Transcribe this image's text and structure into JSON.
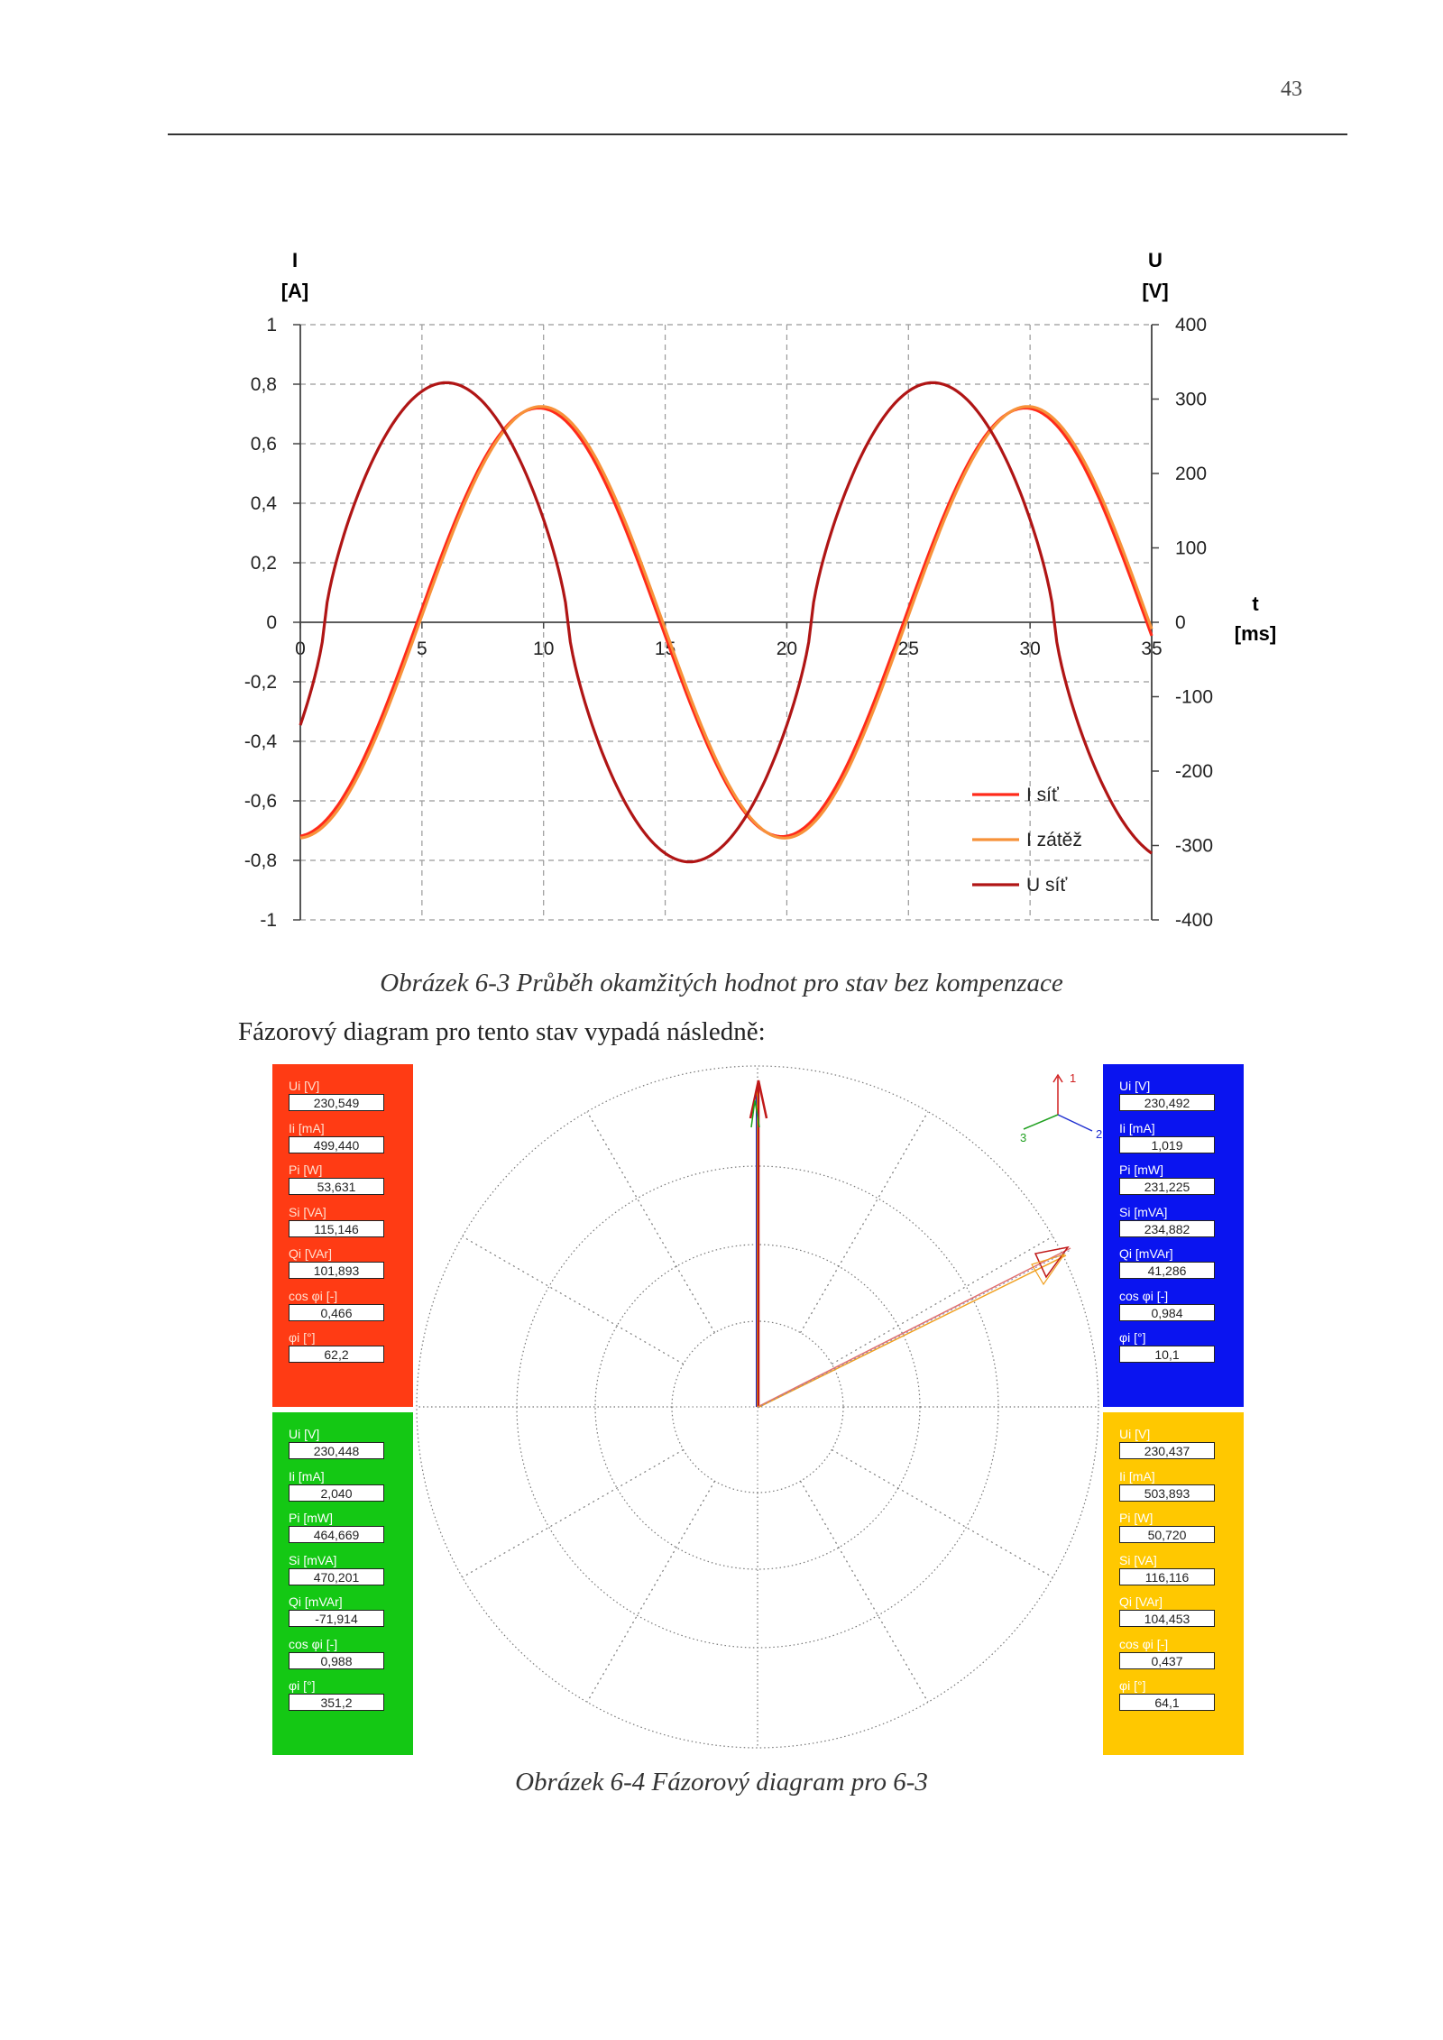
{
  "page": {
    "number": "43",
    "figure1_caption": "Obrázek 6-3 Průběh okamžitých hodnot pro stav bez kompenzace",
    "paragraph": "Fázorový diagram pro tento stav vypadá následně:",
    "figure2_caption": "Obrázek 6-4 Fázorový diagram pro 6-3"
  },
  "chart_data": {
    "type": "line",
    "left_axis": {
      "label_line1": "I",
      "label_line2": "[A]",
      "range": [
        -1,
        1
      ],
      "ticks": [
        "1",
        "0,8",
        "0,6",
        "0,4",
        "0,2",
        "0",
        "-0,2",
        "-0,4",
        "-0,6",
        "-0,8",
        "-1"
      ]
    },
    "right_axis": {
      "label_line1": "U",
      "label_line2": "[V]",
      "range": [
        -400,
        400
      ],
      "ticks": [
        "400",
        "300",
        "200",
        "100",
        "0",
        "-100",
        "-200",
        "-300",
        "-400"
      ]
    },
    "x_axis": {
      "label_line1": "t",
      "label_line2": "[ms]",
      "range": [
        0,
        35
      ],
      "ticks": [
        "0",
        "5",
        "10",
        "15",
        "20",
        "25",
        "30",
        "35"
      ]
    },
    "grid": true,
    "legend_position": "bottom-right",
    "series": [
      {
        "name": "I síť",
        "axis": "left",
        "color": "#ff2a1a",
        "amplitude": 0.72,
        "peak_t_ms": 9.8,
        "period_ms": 20
      },
      {
        "name": "I zátěž",
        "axis": "left",
        "color": "#f7923a",
        "amplitude": 0.725,
        "peak_t_ms": 9.9,
        "period_ms": 20
      },
      {
        "name": "U síť",
        "axis": "right",
        "color": "#b01515",
        "amplitude": 322,
        "peak_t_ms": 6.0,
        "period_ms": 20
      }
    ]
  },
  "phasor": {
    "axis_labels": {
      "1": "1",
      "2": "2",
      "3": "3"
    },
    "panels": {
      "red": {
        "color": "#ff3b14",
        "fields": [
          {
            "label": "Ui [V]",
            "value": "230,549"
          },
          {
            "label": "Ii [mA]",
            "value": "499,440"
          },
          {
            "label": "Pi [W]",
            "value": "53,631"
          },
          {
            "label": "Si [VA]",
            "value": "115,146"
          },
          {
            "label": "Qi [VAr]",
            "value": "101,893"
          },
          {
            "label": "cos φi [-]",
            "value": "0,466"
          },
          {
            "label": "φi [°]",
            "value": "62,2"
          }
        ]
      },
      "blue": {
        "color": "#0a14f0",
        "fields": [
          {
            "label": "Ui [V]",
            "value": "230,492"
          },
          {
            "label": "Ii [mA]",
            "value": "1,019"
          },
          {
            "label": "Pi [mW]",
            "value": "231,225"
          },
          {
            "label": "Si [mVA]",
            "value": "234,882"
          },
          {
            "label": "Qi [mVAr]",
            "value": "41,286"
          },
          {
            "label": "cos φi [-]",
            "value": "0,984"
          },
          {
            "label": "φi [°]",
            "value": "10,1"
          }
        ]
      },
      "green": {
        "color": "#14c814",
        "fields": [
          {
            "label": "Ui [V]",
            "value": "230,448"
          },
          {
            "label": "Ii [mA]",
            "value": "2,040"
          },
          {
            "label": "Pi [mW]",
            "value": "464,669"
          },
          {
            "label": "Si [mVA]",
            "value": "470,201"
          },
          {
            "label": "Qi [mVAr]",
            "value": "-71,914"
          },
          {
            "label": "cos φi [-]",
            "value": "0,988"
          },
          {
            "label": "φi [°]",
            "value": "351,2"
          }
        ]
      },
      "yellow": {
        "color": "#ffc800",
        "fields": [
          {
            "label": "Ui [V]",
            "value": "230,437"
          },
          {
            "label": "Ii [mA]",
            "value": "503,893"
          },
          {
            "label": "Pi [W]",
            "value": "50,720"
          },
          {
            "label": "Si [VA]",
            "value": "116,116"
          },
          {
            "label": "Qi [VAr]",
            "value": "104,453"
          },
          {
            "label": "cos φi [-]",
            "value": "0,437"
          },
          {
            "label": "φi [°]",
            "value": "64,1"
          }
        ]
      }
    }
  }
}
